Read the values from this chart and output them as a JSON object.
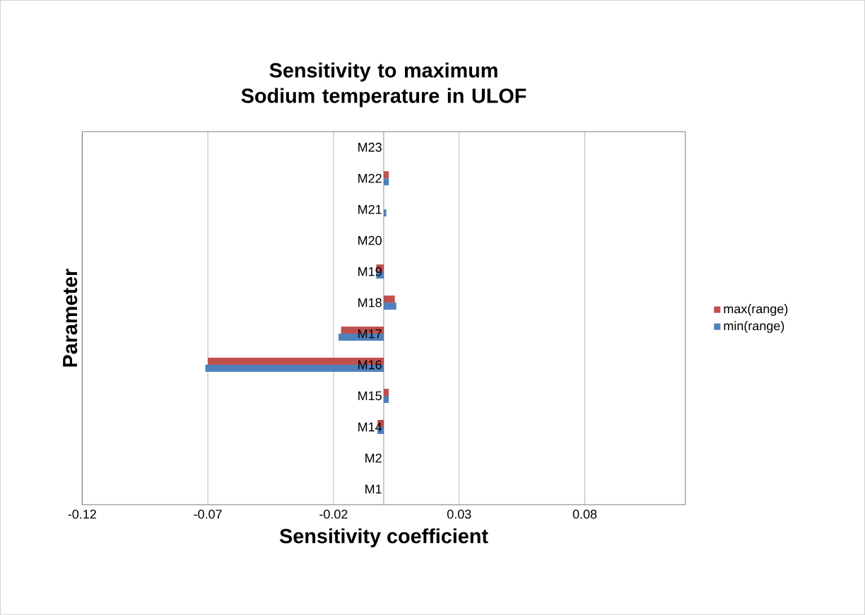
{
  "chart_data": {
    "type": "bar",
    "orientation": "horizontal",
    "title": "Sensitivity to maximum Sodium temperature in ULOF",
    "xlabel": "Sensitivity coefficient",
    "ylabel": "Parameter",
    "categories": [
      "M23",
      "M22",
      "M21",
      "M20",
      "M19",
      "M18",
      "M17",
      "M16",
      "M15",
      "M14",
      "M2",
      "M1"
    ],
    "series": [
      {
        "name": "max(range)",
        "color": "#c0504d",
        "values": [
          0,
          0.002,
          0,
          0,
          -0.003,
          0.0044,
          -0.017,
          -0.07,
          0.002,
          -0.0025,
          0,
          0
        ]
      },
      {
        "name": "min(range)",
        "color": "#4f81bd",
        "values": [
          0,
          0.002,
          0.001,
          0,
          -0.003,
          0.005,
          -0.018,
          -0.071,
          0.002,
          -0.0025,
          0,
          0
        ]
      }
    ],
    "xlim": [
      -0.12,
      0.12
    ],
    "xticks": [
      -0.12,
      -0.07,
      -0.02,
      0.03,
      0.08
    ],
    "grid": "x",
    "legend": "right"
  }
}
